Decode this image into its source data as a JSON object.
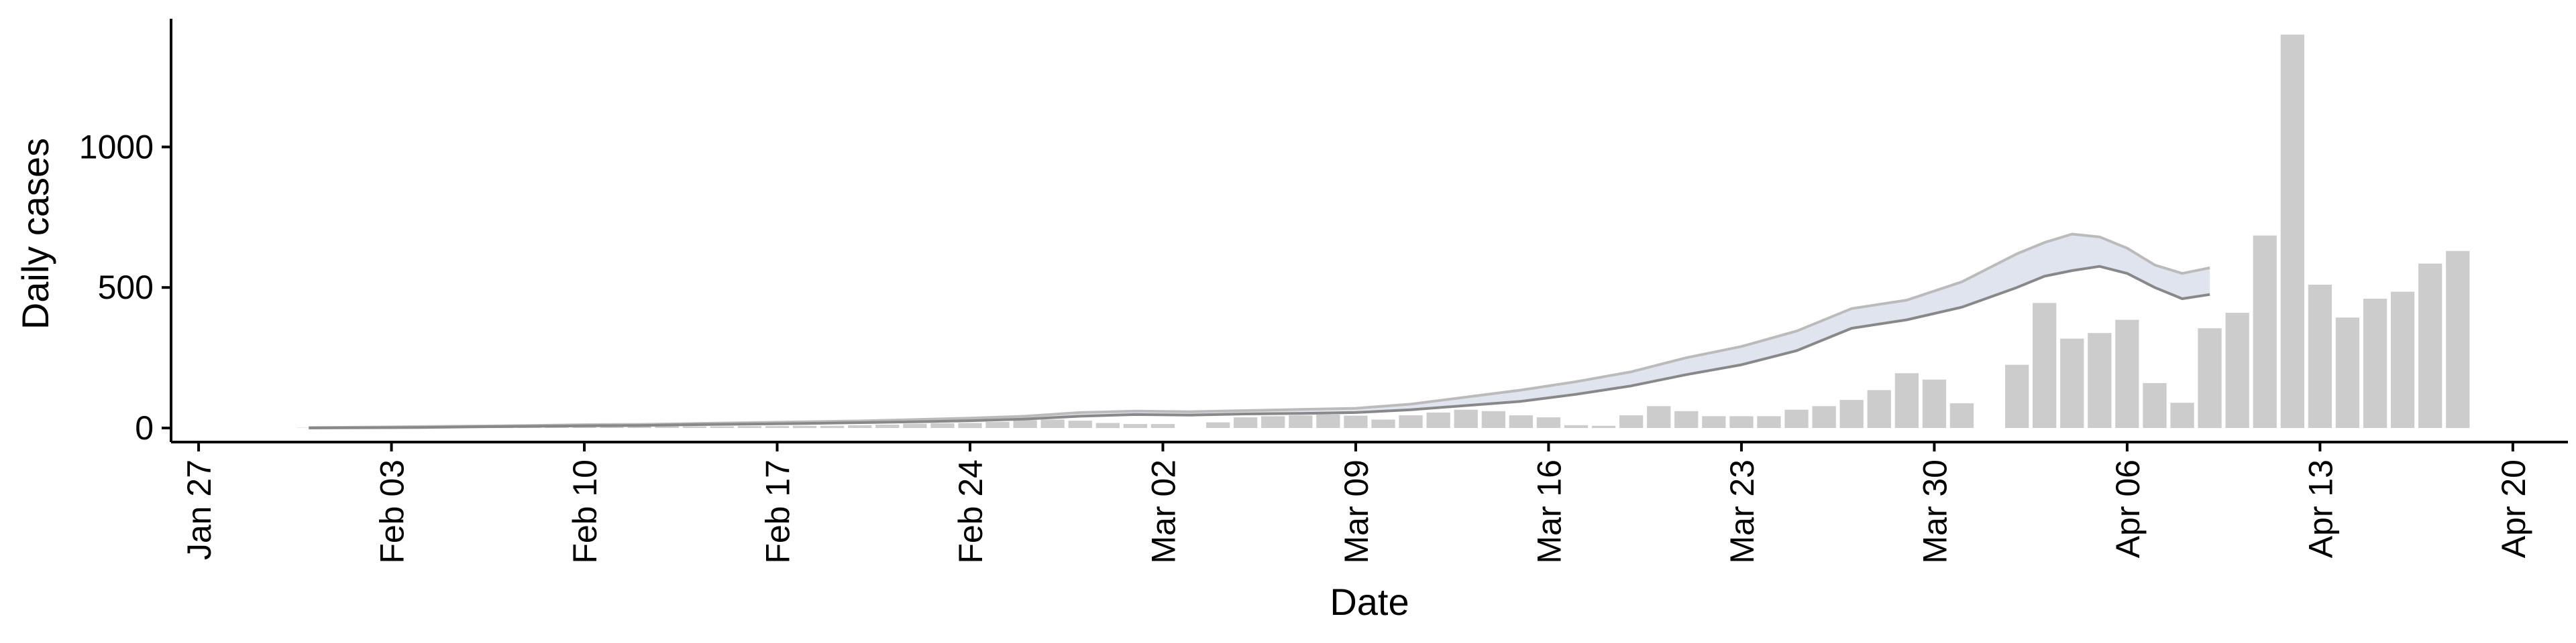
{
  "chart_data": {
    "type": "bar",
    "xlabel": "Date",
    "ylabel": "Daily cases",
    "xlim": [
      "2020-01-26",
      "2020-04-22"
    ],
    "ylim": [
      -50,
      1480
    ],
    "x_ticks": [
      "2020-01-27",
      "2020-02-03",
      "2020-02-10",
      "2020-02-17",
      "2020-02-24",
      "2020-03-02",
      "2020-03-09",
      "2020-03-16",
      "2020-03-23",
      "2020-03-30",
      "2020-04-06",
      "2020-04-13",
      "2020-04-20"
    ],
    "x_tick_labels": [
      "Jan 27",
      "Feb 03",
      "Feb 10",
      "Feb 17",
      "Feb 24",
      "Mar 02",
      "Mar 09",
      "Mar 16",
      "Mar 23",
      "Mar 30",
      "Apr 06",
      "Apr 13",
      "Apr 20"
    ],
    "y_ticks": [
      0,
      500,
      1000
    ],
    "y_tick_labels": [
      "0",
      "500",
      "1000"
    ],
    "grid": false,
    "legend": "none",
    "colors": {
      "bars": "#cccccc",
      "band": "#dde1ec",
      "lower_bound": "#888888",
      "upper_bound": "#bbbbbb"
    },
    "cases": {
      "x": [
        "2020-01-31",
        "2020-02-01",
        "2020-02-02",
        "2020-02-03",
        "2020-02-04",
        "2020-02-05",
        "2020-02-06",
        "2020-02-07",
        "2020-02-08",
        "2020-02-09",
        "2020-02-10",
        "2020-02-11",
        "2020-02-12",
        "2020-02-13",
        "2020-02-14",
        "2020-02-15",
        "2020-02-16",
        "2020-02-17",
        "2020-02-18",
        "2020-02-19",
        "2020-02-20",
        "2020-02-21",
        "2020-02-22",
        "2020-02-23",
        "2020-02-24",
        "2020-02-25",
        "2020-02-26",
        "2020-02-27",
        "2020-02-28",
        "2020-02-29",
        "2020-03-01",
        "2020-03-02",
        "2020-03-03",
        "2020-03-04",
        "2020-03-05",
        "2020-03-06",
        "2020-03-07",
        "2020-03-08",
        "2020-03-09",
        "2020-03-10",
        "2020-03-11",
        "2020-03-12",
        "2020-03-13",
        "2020-03-14",
        "2020-03-15",
        "2020-03-16",
        "2020-03-17",
        "2020-03-18",
        "2020-03-19",
        "2020-03-20",
        "2020-03-21",
        "2020-03-22",
        "2020-03-23",
        "2020-03-24",
        "2020-03-25",
        "2020-03-26",
        "2020-03-27",
        "2020-03-28",
        "2020-03-29",
        "2020-03-30",
        "2020-03-31",
        "2020-04-01",
        "2020-04-02",
        "2020-04-03",
        "2020-04-04",
        "2020-04-05",
        "2020-04-06",
        "2020-04-07",
        "2020-04-08",
        "2020-04-09",
        "2020-04-10",
        "2020-04-11",
        "2020-04-12",
        "2020-04-13",
        "2020-04-14",
        "2020-04-15",
        "2020-04-16",
        "2020-04-17",
        "2020-04-18"
      ],
      "values": [
        1,
        1,
        2,
        2,
        2,
        3,
        3,
        3,
        4,
        4,
        4,
        5,
        5,
        6,
        6,
        6,
        7,
        7,
        8,
        8,
        10,
        12,
        15,
        17,
        18,
        22,
        28,
        30,
        26,
        18,
        14,
        14,
        0,
        20,
        38,
        42,
        45,
        48,
        44,
        30,
        45,
        55,
        65,
        60,
        45,
        38,
        10,
        8,
        45,
        78,
        60,
        42,
        42,
        42,
        65,
        78,
        100,
        135,
        195,
        172,
        88,
        0,
        225,
        445,
        318,
        338,
        385,
        160,
        90,
        355,
        410,
        685,
        1400,
        510,
        393,
        460,
        485,
        585,
        630
      ]
    },
    "estimate": {
      "x": [
        "2020-01-31",
        "2020-02-02",
        "2020-02-04",
        "2020-02-06",
        "2020-02-08",
        "2020-02-10",
        "2020-02-12",
        "2020-02-14",
        "2020-02-16",
        "2020-02-18",
        "2020-02-20",
        "2020-02-22",
        "2020-02-24",
        "2020-02-26",
        "2020-02-28",
        "2020-03-01",
        "2020-03-03",
        "2020-03-05",
        "2020-03-07",
        "2020-03-09",
        "2020-03-11",
        "2020-03-13",
        "2020-03-15",
        "2020-03-17",
        "2020-03-19",
        "2020-03-21",
        "2020-03-23",
        "2020-03-25",
        "2020-03-27",
        "2020-03-29",
        "2020-03-31",
        "2020-04-02",
        "2020-04-03",
        "2020-04-04",
        "2020-04-05",
        "2020-04-06",
        "2020-04-07",
        "2020-04-08",
        "2020-04-09"
      ],
      "lower": [
        0,
        1,
        2,
        4,
        6,
        8,
        9,
        12,
        14,
        16,
        19,
        22,
        26,
        32,
        42,
        48,
        46,
        50,
        52,
        55,
        65,
        80,
        95,
        120,
        150,
        190,
        225,
        275,
        355,
        385,
        430,
        500,
        540,
        560,
        575,
        550,
        500,
        460,
        475
      ],
      "upper": [
        2,
        3,
        5,
        7,
        9,
        12,
        13,
        16,
        19,
        22,
        25,
        30,
        35,
        42,
        55,
        60,
        58,
        62,
        66,
        70,
        85,
        110,
        135,
        165,
        200,
        250,
        290,
        345,
        425,
        455,
        520,
        620,
        660,
        690,
        680,
        640,
        580,
        550,
        570
      ]
    }
  }
}
